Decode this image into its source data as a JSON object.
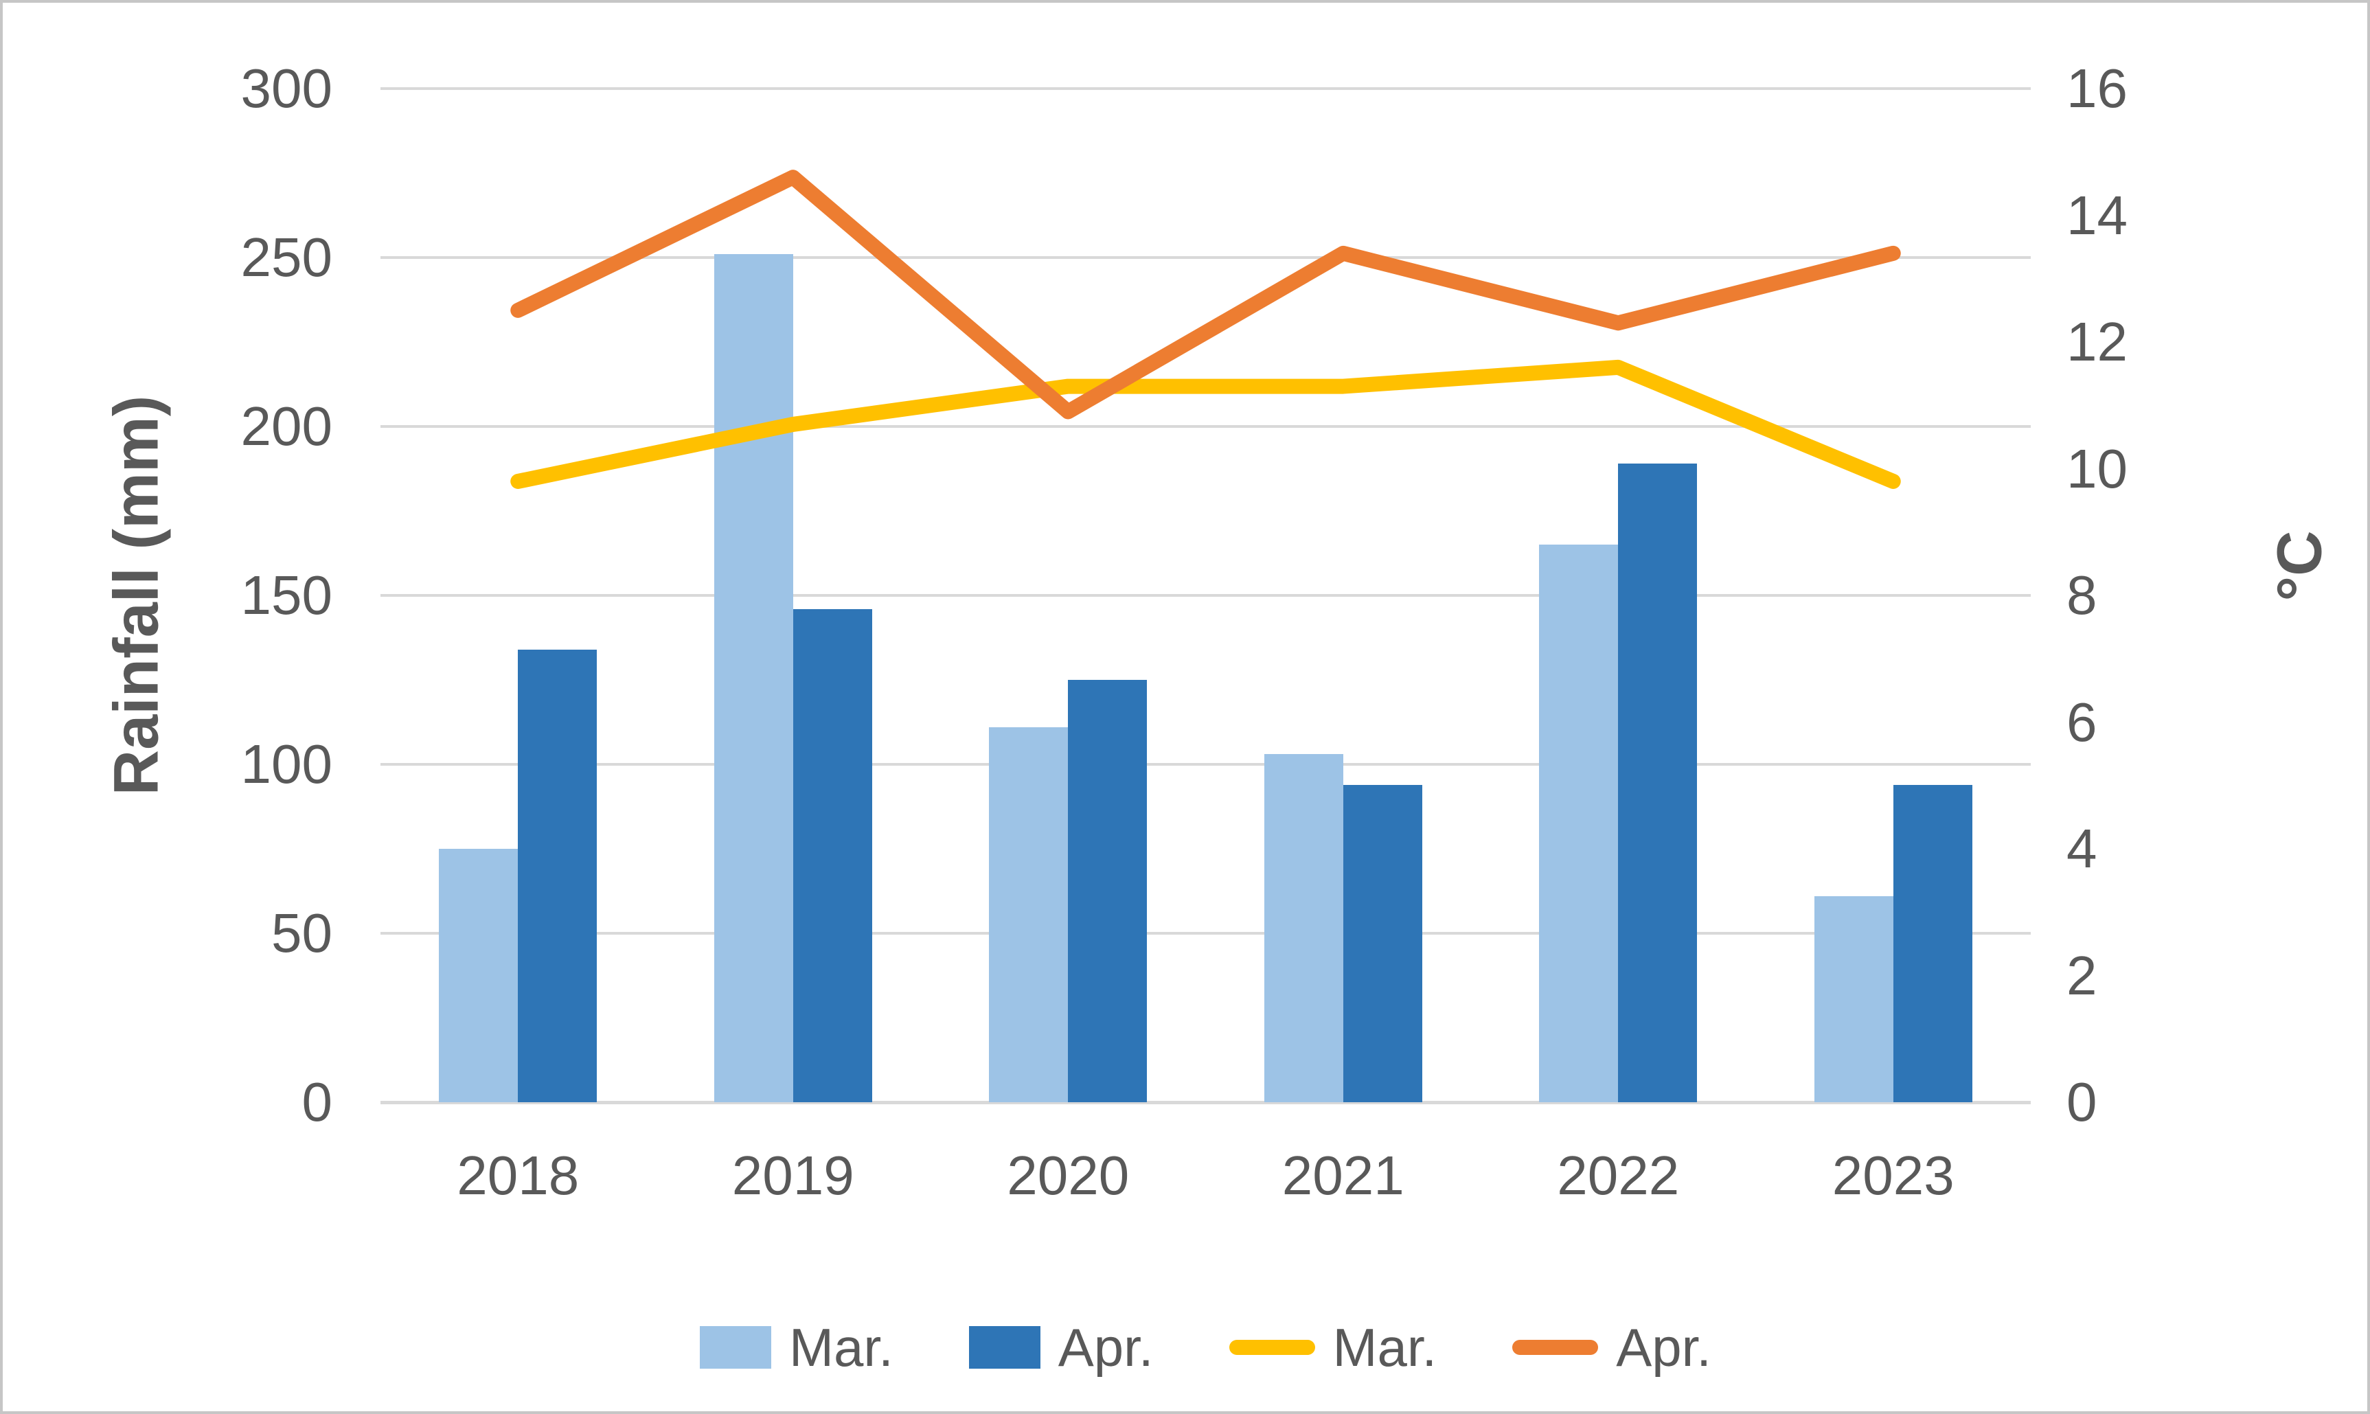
{
  "figure": {
    "background": "#ffffff",
    "border_color": "#c6c6c6",
    "text_color": "#595959",
    "gridline_color": "#d9d9d9"
  },
  "chart_data": {
    "type": "combo-bar-line",
    "categories": [
      "2018",
      "2019",
      "2020",
      "2021",
      "2022",
      "2023"
    ],
    "left_axis": {
      "title": "Rainfall (mm)",
      "min": 0,
      "max": 300,
      "step": 50,
      "tick_labels": [
        "0",
        "50",
        "100",
        "150",
        "200",
        "250",
        "300"
      ]
    },
    "right_axis": {
      "title": "°C",
      "min": 0,
      "max": 16,
      "step": 2,
      "tick_labels": [
        "0",
        "2",
        "4",
        "6",
        "8",
        "10",
        "12",
        "14",
        "16"
      ]
    },
    "series": [
      {
        "name": "Mar.",
        "type": "bar",
        "axis": "left",
        "color": "#9dc3e6",
        "values": [
          75,
          251,
          111,
          103,
          165,
          61
        ]
      },
      {
        "name": "Apr.",
        "type": "bar",
        "axis": "left",
        "color": "#2e75b6",
        "values": [
          134,
          146,
          125,
          94,
          189,
          94
        ]
      },
      {
        "name": "Mar.",
        "type": "line",
        "axis": "right",
        "color": "#ffc000",
        "values": [
          9.8,
          10.7,
          11.3,
          11.3,
          11.6,
          9.8
        ]
      },
      {
        "name": "Apr.",
        "type": "line",
        "axis": "right",
        "color": "#ed7d31",
        "values": [
          12.5,
          14.6,
          10.9,
          13.4,
          12.3,
          13.4
        ]
      }
    ],
    "legend": {
      "position": "bottom",
      "labels": [
        "Mar.",
        "Apr.",
        "Mar.",
        "Apr."
      ]
    },
    "grid": "horizontal-only"
  }
}
